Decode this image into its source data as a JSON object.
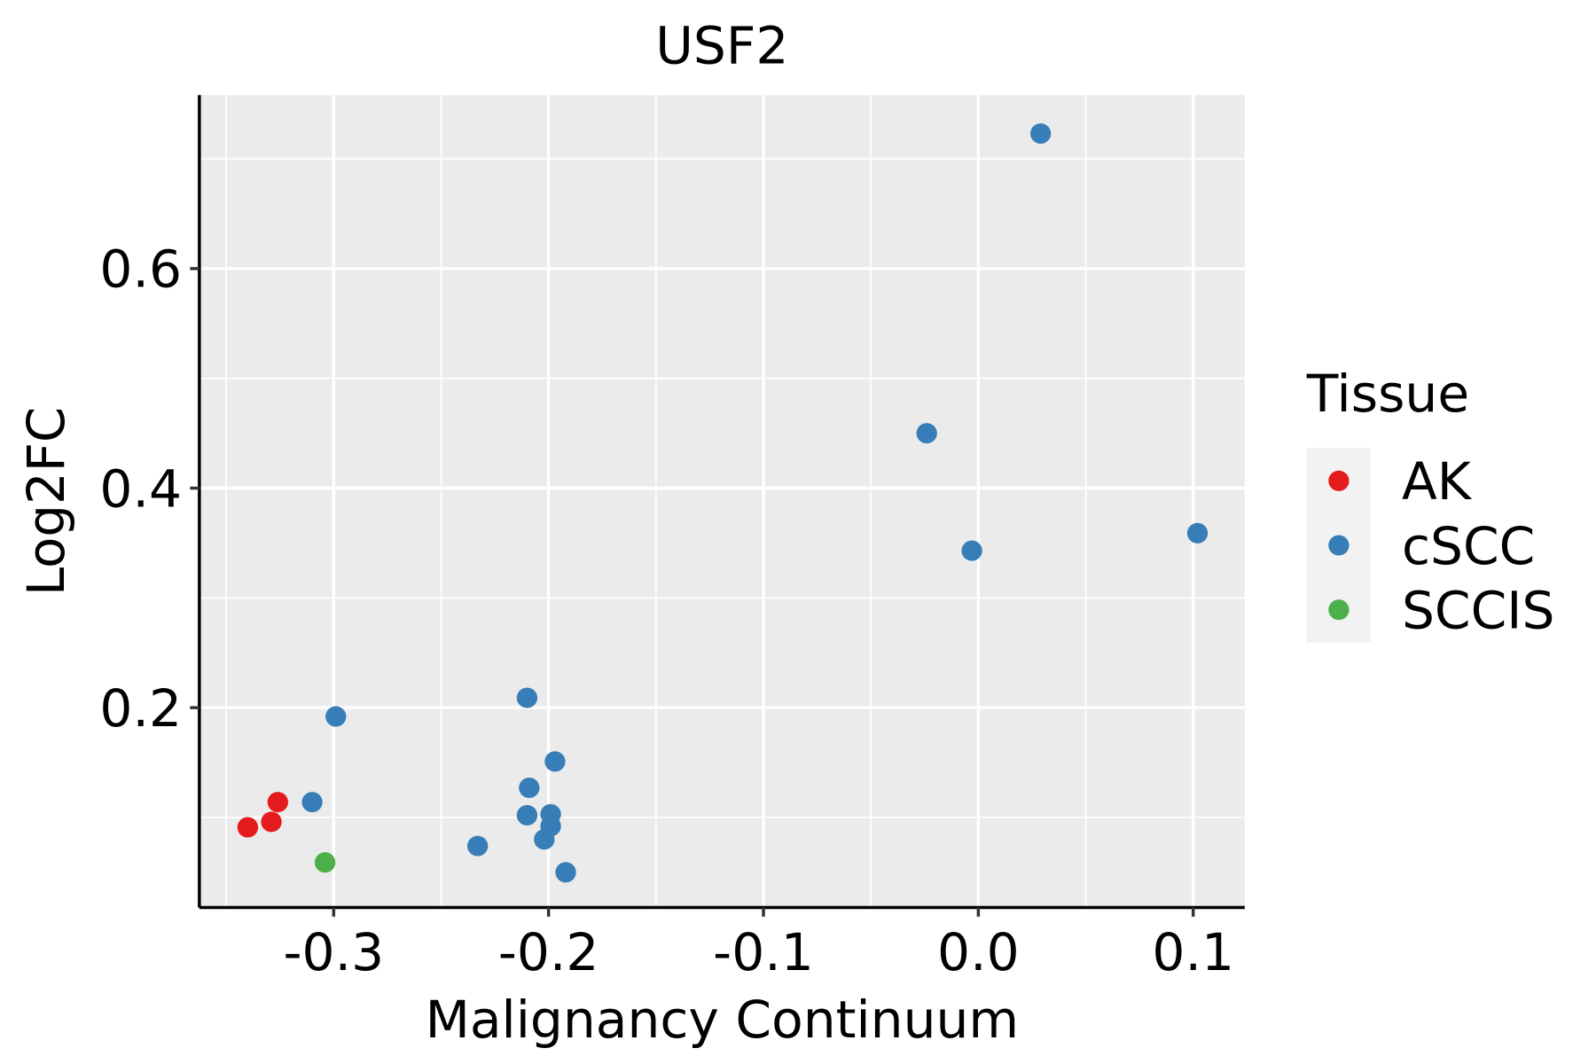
{
  "chart_data": {
    "type": "scatter",
    "title": "USF2",
    "xlabel": "Malignancy Continuum",
    "ylabel": "Log2FC",
    "xlim": [
      -0.3625,
      0.124
    ],
    "ylim": [
      0.018,
      0.758
    ],
    "xticks": [
      -0.3,
      -0.2,
      -0.1,
      0.0,
      0.1
    ],
    "xtick_labels": [
      "-0.3",
      "-0.2",
      "-0.1",
      "0.0",
      "0.1"
    ],
    "xminor": [
      -0.35,
      -0.25,
      -0.15,
      -0.05,
      0.05
    ],
    "yticks": [
      0.2,
      0.4,
      0.6
    ],
    "ytick_labels": [
      "0.2",
      "0.4",
      "0.6"
    ],
    "yminor": [
      0.1,
      0.3,
      0.5,
      0.7
    ],
    "grid": true,
    "legend": {
      "title": "Tissue",
      "placement": "right"
    },
    "series": [
      {
        "name": "AK",
        "color": "#E41A1C",
        "points": [
          [
            -0.34,
            0.091
          ],
          [
            -0.329,
            0.096
          ],
          [
            -0.326,
            0.114
          ]
        ]
      },
      {
        "name": "cSCC",
        "color": "#377EB8",
        "points": [
          [
            0.029,
            0.723
          ],
          [
            -0.024,
            0.45
          ],
          [
            -0.003,
            0.343
          ],
          [
            0.102,
            0.359
          ],
          [
            -0.299,
            0.192
          ],
          [
            -0.31,
            0.114
          ],
          [
            -0.21,
            0.209
          ],
          [
            -0.197,
            0.151
          ],
          [
            -0.209,
            0.127
          ],
          [
            -0.21,
            0.102
          ],
          [
            -0.199,
            0.103
          ],
          [
            -0.199,
            0.092
          ],
          [
            -0.202,
            0.08
          ],
          [
            -0.233,
            0.074
          ],
          [
            -0.192,
            0.05
          ]
        ]
      },
      {
        "name": "SCCIS",
        "color": "#4DAF4A",
        "points": [
          [
            -0.304,
            0.059
          ]
        ]
      }
    ]
  }
}
